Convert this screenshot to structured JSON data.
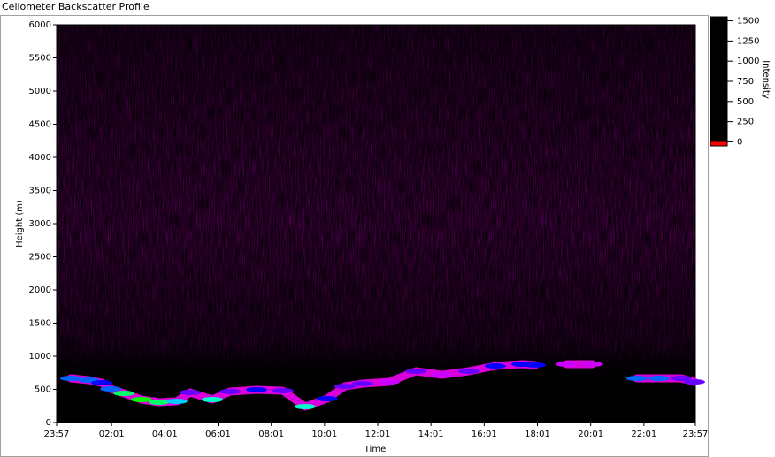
{
  "chart_data": {
    "type": "heatmap",
    "title": "Ceilometer Backscatter Profile",
    "x_label": "Time",
    "y_label": "Height (m)",
    "xlim": [
      0,
      1440
    ],
    "xticks": [
      {
        "value": 0,
        "label": "23:57"
      },
      {
        "value": 124,
        "label": "02:01"
      },
      {
        "value": 244,
        "label": "04:01"
      },
      {
        "value": 364,
        "label": "06:01"
      },
      {
        "value": 484,
        "label": "08:01"
      },
      {
        "value": 604,
        "label": "10:01"
      },
      {
        "value": 724,
        "label": "12:01"
      },
      {
        "value": 844,
        "label": "14:01"
      },
      {
        "value": 964,
        "label": "16:01"
      },
      {
        "value": 1084,
        "label": "18:01"
      },
      {
        "value": 1204,
        "label": "20:01"
      },
      {
        "value": 1324,
        "label": "22:01"
      },
      {
        "value": 1440,
        "label": "23:57"
      }
    ],
    "ylim": [
      0,
      6000
    ],
    "yticks": [
      0,
      500,
      1000,
      1500,
      2000,
      2500,
      3000,
      3500,
      4000,
      4500,
      5000,
      5500,
      6000
    ],
    "colorbar_label": "Intensity",
    "clim": [
      -50,
      1550
    ],
    "cticks": [
      0,
      250,
      500,
      750,
      1000,
      1250,
      1500
    ],
    "colormap": [
      "#000000",
      "#ff00ff",
      "#0000ff",
      "#00ffff",
      "#00ff00",
      "#ffff00",
      "#ff0000"
    ],
    "layer": {
      "x": [
        32,
        72,
        102,
        122,
        152,
        191,
        231,
        271,
        301,
        351,
        391,
        451,
        510,
        560,
        610,
        650,
        690,
        750,
        810,
        869,
        929,
        989,
        1049,
        1079,
        null,
        1149,
        1208,
        null,
        1308,
        1358,
        1408,
        1438
      ],
      "values": [
        667,
        640,
        600,
        507,
        440,
        347,
        307,
        320,
        453,
        347,
        467,
        493,
        480,
        240,
        360,
        547,
        587,
        613,
        773,
        720,
        773,
        853,
        880,
        867,
        null,
        880,
        880,
        null,
        667,
        667,
        667,
        613
      ],
      "intensity": [
        600,
        600,
        500,
        600,
        900,
        1000,
        900,
        700,
        400,
        800,
        400,
        500,
        400,
        800,
        500,
        400,
        400,
        300,
        400,
        300,
        400,
        500,
        500,
        500,
        null,
        300,
        300,
        null,
        600,
        600,
        400,
        400
      ]
    }
  }
}
